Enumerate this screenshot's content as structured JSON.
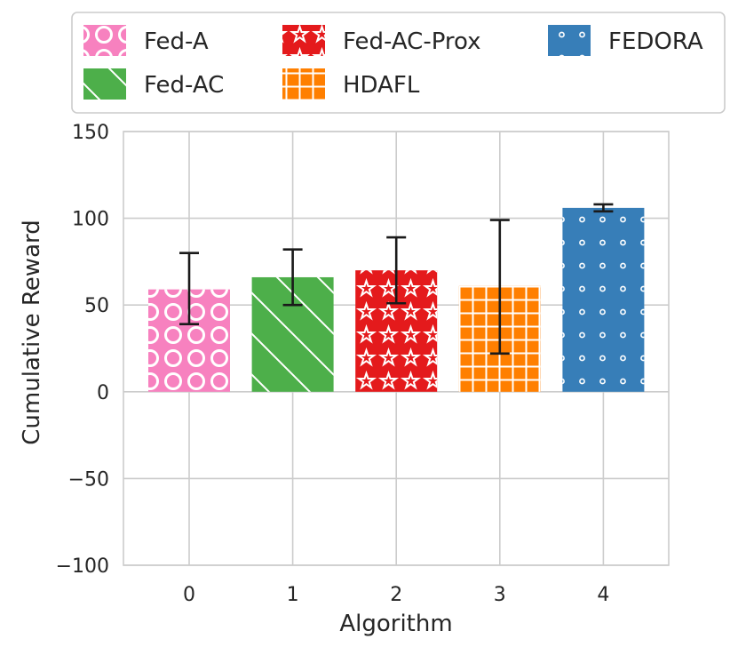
{
  "chart_data": {
    "type": "bar",
    "title": "",
    "xlabel": "Algorithm",
    "ylabel": "Cumulative Reward",
    "ylim": [
      -100,
      150
    ],
    "yticks": [
      -100,
      -50,
      0,
      50,
      100,
      150
    ],
    "ytick_labels": [
      "−100",
      "−50",
      "0",
      "50",
      "100",
      "150"
    ],
    "categories": [
      "0",
      "1",
      "2",
      "3",
      "4"
    ],
    "grid": true,
    "legend_position": "top",
    "series": [
      {
        "name": "Fed-A",
        "x": "0",
        "value": 59,
        "err_low": 39,
        "err_high": 80,
        "color": "#f781bf",
        "hatch": "circles"
      },
      {
        "name": "Fed-AC",
        "x": "1",
        "value": 66,
        "err_low": 50,
        "err_high": 82,
        "color": "#4daf4a",
        "hatch": "diagonal"
      },
      {
        "name": "Fed-AC-Prox",
        "x": "2",
        "value": 70,
        "err_low": 51,
        "err_high": 89,
        "color": "#e41a1c",
        "hatch": "stars"
      },
      {
        "name": "HDAFL",
        "x": "3",
        "value": 61,
        "err_low": 22,
        "err_high": 99,
        "color": "#ff7f00",
        "hatch": "grid"
      },
      {
        "name": "FEDORA",
        "x": "4",
        "value": 106,
        "err_low": 104,
        "err_high": 108,
        "color": "#377eb8",
        "hatch": "dots"
      }
    ]
  }
}
